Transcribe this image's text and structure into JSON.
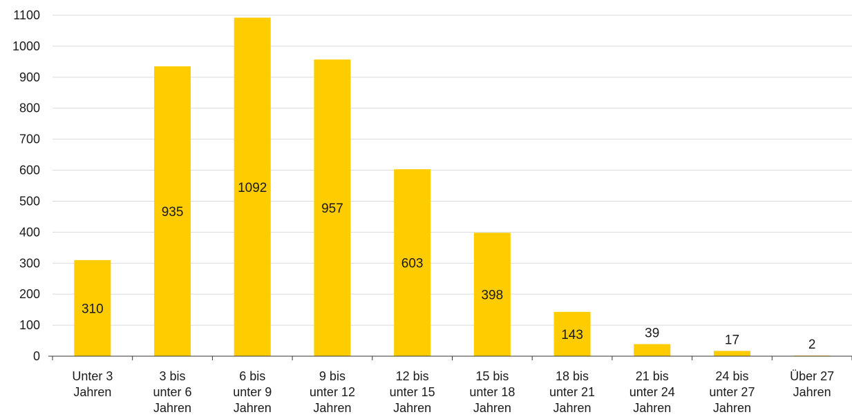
{
  "chart_data": {
    "type": "bar",
    "categories": [
      [
        "Unter 3",
        "Jahren"
      ],
      [
        "3 bis",
        "unter 6",
        "Jahren"
      ],
      [
        "6 bis",
        "unter 9",
        "Jahren"
      ],
      [
        "9 bis",
        "unter 12",
        "Jahren"
      ],
      [
        "12 bis",
        "unter 15",
        "Jahren"
      ],
      [
        "15 bis",
        "unter 18",
        "Jahren"
      ],
      [
        "18 bis",
        "unter 21",
        "Jahren"
      ],
      [
        "21 bis",
        "unter 24",
        "Jahren"
      ],
      [
        "24 bis",
        "unter 27",
        "Jahren"
      ],
      [
        "Über 27",
        "Jahren"
      ]
    ],
    "values": [
      310,
      935,
      1092,
      957,
      603,
      398,
      143,
      39,
      17,
      2
    ],
    "label_position": [
      "inside",
      "inside",
      "inside",
      "inside",
      "inside",
      "inside",
      "inside",
      "outside",
      "outside",
      "outside"
    ],
    "yticks": [
      0,
      100,
      200,
      300,
      400,
      500,
      600,
      700,
      800,
      900,
      1000,
      1100
    ],
    "ylim": [
      0,
      1100
    ],
    "grid": true,
    "bar_color": "#FFCC00",
    "grid_color": "#d9d9d9",
    "axis_color": "#333333"
  }
}
